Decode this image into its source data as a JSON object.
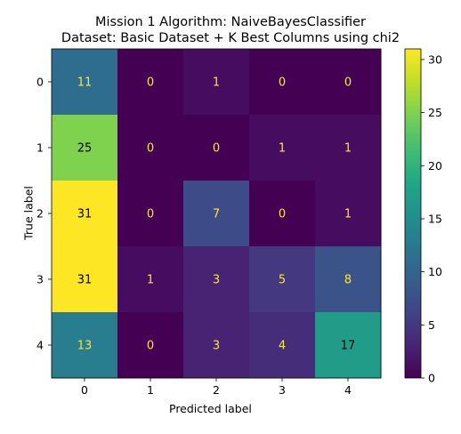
{
  "chart_data": {
    "type": "heatmap",
    "title": "Mission 1 Algorithm: NaiveBayesClassifier",
    "subtitle": "Dataset: Basic Dataset + K Best Columns using chi2",
    "xlabel": "Predicted label",
    "ylabel": "True label",
    "x_categories": [
      "0",
      "1",
      "2",
      "3",
      "4"
    ],
    "y_categories": [
      "0",
      "1",
      "2",
      "3",
      "4"
    ],
    "values": [
      [
        11,
        0,
        1,
        0,
        0
      ],
      [
        25,
        0,
        0,
        1,
        1
      ],
      [
        31,
        0,
        7,
        0,
        1
      ],
      [
        31,
        1,
        3,
        5,
        8
      ],
      [
        13,
        0,
        3,
        4,
        17
      ]
    ],
    "colormap": "viridis",
    "vmin": 0,
    "vmax": 31,
    "colorbar_ticks": [
      0,
      5,
      10,
      15,
      20,
      25,
      30
    ],
    "label_colors": {
      "light": "#fde725",
      "dark": "#000000"
    }
  }
}
